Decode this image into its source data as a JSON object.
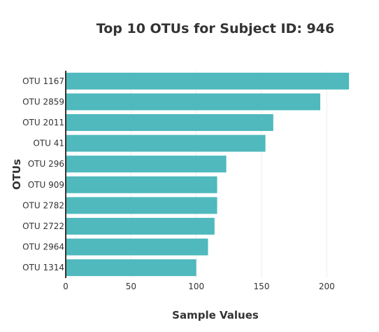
{
  "chart_data": {
    "type": "bar",
    "orientation": "horizontal",
    "title": "Top 10 OTUs for Subject ID: 946",
    "xlabel": "Sample Values",
    "ylabel": "OTUs",
    "categories": [
      "OTU 1167",
      "OTU 2859",
      "OTU 2011",
      "OTU 41",
      "OTU 296",
      "OTU 909",
      "OTU 2782",
      "OTU 2722",
      "OTU 2964",
      "OTU 1314"
    ],
    "values": [
      217,
      195,
      159,
      153,
      123,
      116,
      116,
      114,
      109,
      100
    ],
    "xlim": [
      0,
      225
    ],
    "xticks": [
      0,
      50,
      100,
      150,
      200
    ],
    "grid": true,
    "bar_color": "#4fb9bd"
  }
}
